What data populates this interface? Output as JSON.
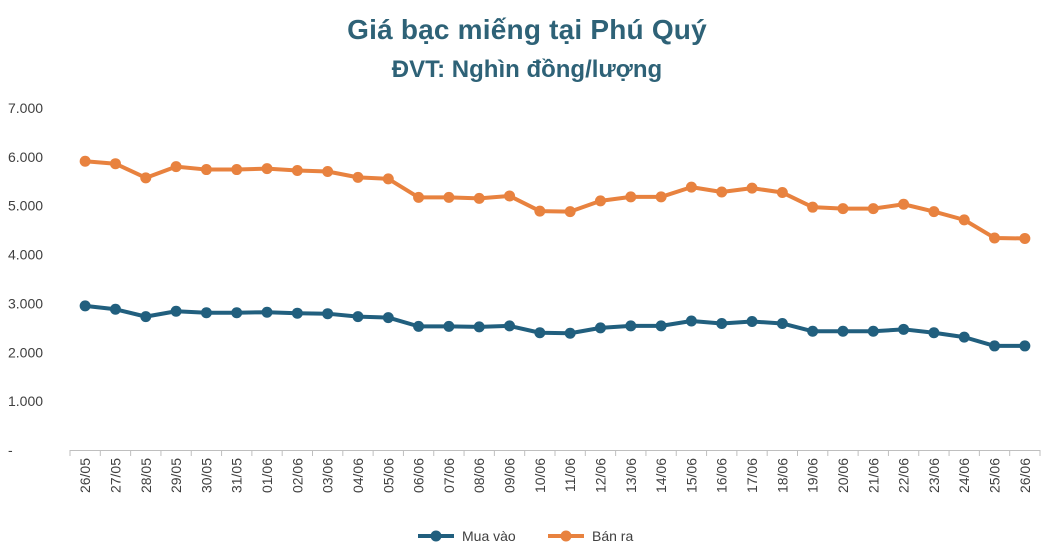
{
  "chart_data": {
    "type": "line",
    "title": "Giá bạc miếng tại Phú Quý",
    "subtitle": "ĐVT: Nghìn đồng/lượng",
    "categories": [
      "26/05",
      "27/05",
      "28/05",
      "29/05",
      "30/05",
      "31/05",
      "01/06",
      "02/06",
      "03/06",
      "04/06",
      "05/06",
      "06/06",
      "07/06",
      "08/06",
      "09/06",
      "10/06",
      "11/06",
      "12/06",
      "13/06",
      "14/06",
      "15/06",
      "16/06",
      "17/06",
      "18/06",
      "19/06",
      "20/06",
      "21/06",
      "22/06",
      "23/06",
      "24/06",
      "25/06",
      "26/06"
    ],
    "y_ticks": [
      "-",
      "1.000",
      "2.000",
      "3.000",
      "4.000",
      "5.000",
      "6.000",
      "7.000"
    ],
    "ylim": [
      0,
      7000
    ],
    "grid": false,
    "legend_position": "bottom",
    "series": [
      {
        "name": "Mua vào",
        "color": "#215f7e",
        "values": [
          2950,
          2880,
          2730,
          2840,
          2810,
          2810,
          2820,
          2800,
          2790,
          2730,
          2710,
          2530,
          2530,
          2520,
          2540,
          2400,
          2390,
          2500,
          2540,
          2540,
          2640,
          2590,
          2630,
          2590,
          2430,
          2430,
          2430,
          2470,
          2400,
          2310,
          2130,
          2130
        ]
      },
      {
        "name": "Bán ra",
        "color": "#e8823f",
        "values": [
          5910,
          5860,
          5570,
          5800,
          5740,
          5740,
          5760,
          5720,
          5700,
          5580,
          5550,
          5170,
          5170,
          5150,
          5200,
          4890,
          4880,
          5100,
          5180,
          5180,
          5380,
          5280,
          5360,
          5270,
          4970,
          4940,
          4940,
          5030,
          4880,
          4710,
          4340,
          4330
        ]
      }
    ]
  }
}
